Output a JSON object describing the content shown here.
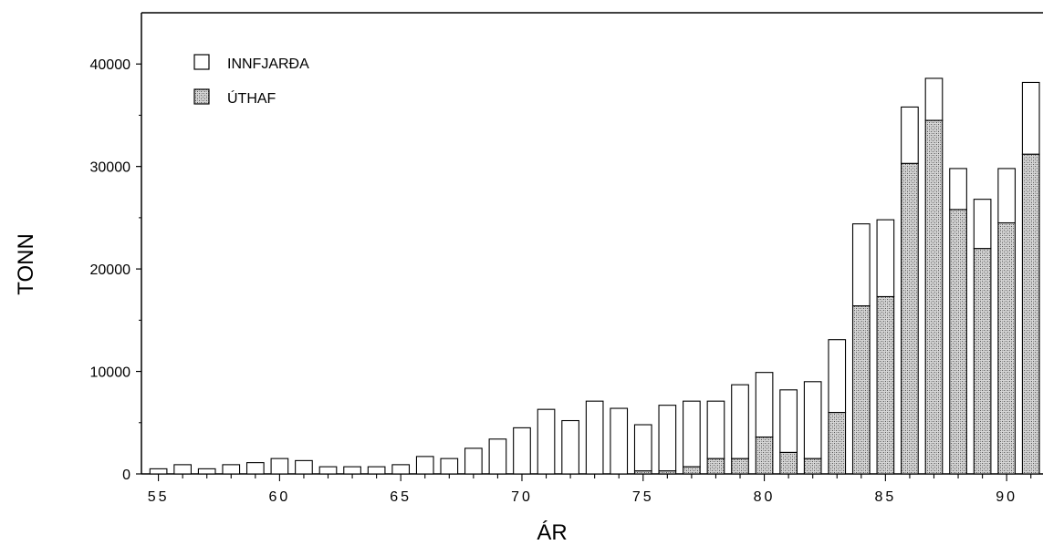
{
  "chart_data": {
    "type": "bar",
    "stacked": true,
    "title": "",
    "xlabel": "ÁR",
    "ylabel": "TONN",
    "ylim": [
      0,
      45000
    ],
    "yticks": [
      0,
      10000,
      20000,
      30000,
      40000
    ],
    "ytick_labels": [
      "0",
      "10000",
      "20000",
      "30000",
      "40000"
    ],
    "xticks": [
      55,
      60,
      65,
      70,
      75,
      80,
      85,
      90
    ],
    "xtick_labels": [
      "55",
      "60",
      "65",
      "70",
      "75",
      "80",
      "85",
      "90"
    ],
    "xlim": [
      54.3,
      91.5
    ],
    "legend_position": "top-left",
    "grid": false,
    "x": [
      55,
      56,
      57,
      58,
      59,
      60,
      61,
      62,
      63,
      64,
      65,
      66,
      67,
      68,
      69,
      70,
      71,
      72,
      73,
      74,
      75,
      76,
      77,
      78,
      79,
      80,
      81,
      82,
      83,
      84,
      85,
      86,
      87,
      88,
      89,
      90,
      91
    ],
    "series": [
      {
        "name": "ÚTHAF",
        "pattern": "stippled",
        "values": [
          0,
          0,
          0,
          0,
          0,
          0,
          0,
          0,
          0,
          0,
          0,
          0,
          0,
          0,
          0,
          0,
          0,
          0,
          0,
          0,
          300,
          300,
          700,
          1500,
          1500,
          3600,
          2100,
          1500,
          6000,
          16400,
          17300,
          30300,
          34500,
          25800,
          22000,
          24500,
          31200
        ]
      },
      {
        "name": "INNFJARÐA",
        "pattern": "white",
        "values": [
          500,
          900,
          500,
          900,
          1100,
          1500,
          1300,
          700,
          700,
          700,
          900,
          1700,
          1500,
          2500,
          3400,
          4500,
          6300,
          5200,
          7100,
          6400,
          4500,
          6400,
          6400,
          5600,
          7200,
          6300,
          6100,
          7500,
          7100,
          8000,
          7500,
          5500,
          4100,
          4000,
          4800,
          5300,
          7000
        ]
      }
    ]
  }
}
